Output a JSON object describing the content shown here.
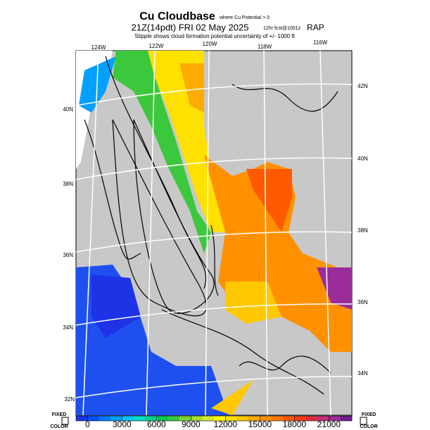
{
  "header": {
    "title": "Cu Cloudbase",
    "title_note": "where Cu Potential > 0",
    "valid_time": "21Z(14pdt) FRI 02 May 2025",
    "forecast": "12hr fcst@1001z",
    "model": "RAP",
    "subtitle": "Stipple shows cloud formation potential uncertainty of +/- 1000 ft"
  },
  "map": {
    "lon_labels": [
      "124W",
      "122W",
      "120W",
      "118W",
      "116W"
    ],
    "lat_labels_left": [
      "40N",
      "38N",
      "36N",
      "34N",
      "32N"
    ],
    "lat_labels_right": [
      "42N",
      "40N",
      "38N",
      "36N",
      "34N"
    ]
  },
  "colorbar": {
    "lim": [
      -1000,
      23000
    ],
    "ticks": [
      0,
      3000,
      6000,
      9000,
      12000,
      15000,
      18000,
      21000
    ],
    "colors": [
      "#1e32e6",
      "#0050ff",
      "#0078ff",
      "#00a0ff",
      "#00c8f0",
      "#00dcc8",
      "#00d28c",
      "#00c850",
      "#3cc83c",
      "#78d232",
      "#a8dc32",
      "#d2eb32",
      "#ffff00",
      "#ffe100",
      "#ffc800",
      "#ffaa00",
      "#ff9100",
      "#ff7800",
      "#ff5a00",
      "#f03c14",
      "#dc2d3c",
      "#be2d78",
      "#9b2d9b",
      "#6e1e91"
    ]
  },
  "corners": {
    "left_top": "FIXED",
    "left_bottom": "COLOR",
    "right_top": "FIXED",
    "right_bottom": "COLOR"
  }
}
